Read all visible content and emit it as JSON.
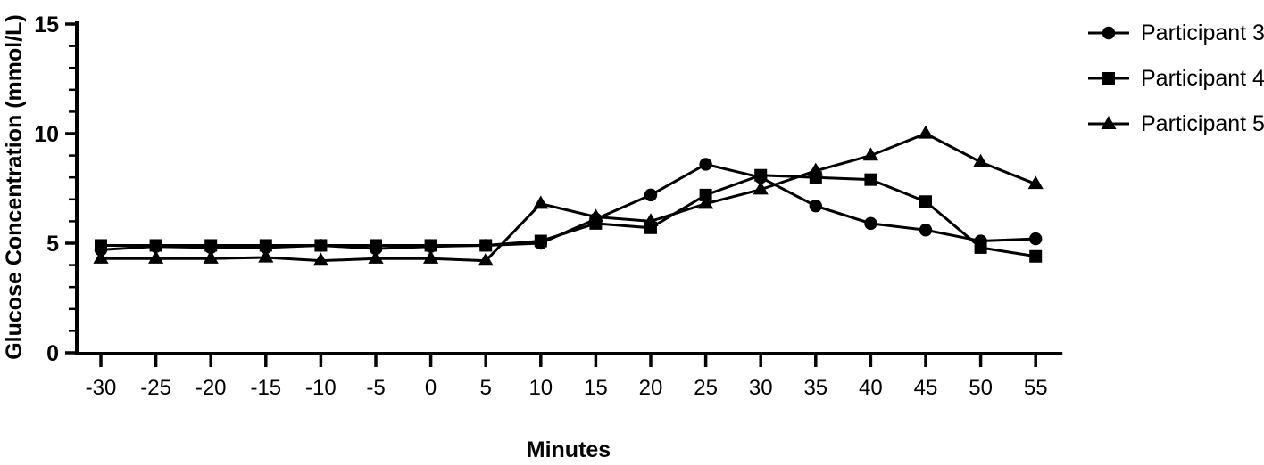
{
  "figure": {
    "background_color": "#ffffff",
    "ink_color": "#000000"
  },
  "chart_data": {
    "type": "line",
    "title": "",
    "xlabel": "Minutes",
    "ylabel": "Glucose Concentration (mmol/L)",
    "xlim": [
      -30,
      55
    ],
    "ylim": [
      0,
      15
    ],
    "x": [
      -30,
      -25,
      -20,
      -15,
      -10,
      -5,
      0,
      5,
      10,
      15,
      20,
      25,
      30,
      35,
      40,
      45,
      50,
      55
    ],
    "x_tick_labels": [
      "-30",
      "-25",
      "-20",
      "-15",
      "-10",
      "-5",
      "0",
      "5",
      "10",
      "15",
      "20",
      "25",
      "30",
      "35",
      "40",
      "45",
      "50",
      "55"
    ],
    "y_major_ticks": [
      0,
      5,
      10,
      15
    ],
    "y_minor_tick_step": 1,
    "grid": false,
    "legend_position": "right-outside",
    "series": [
      {
        "name": "Participant 3",
        "marker": "circle",
        "color": "#000000",
        "values": [
          4.7,
          4.85,
          4.8,
          4.8,
          4.9,
          4.75,
          4.85,
          4.9,
          5.0,
          6.1,
          7.2,
          8.6,
          8.0,
          6.7,
          5.9,
          5.6,
          5.1,
          5.2
        ]
      },
      {
        "name": "Participant 4",
        "marker": "square",
        "color": "#000000",
        "values": [
          4.9,
          4.9,
          4.9,
          4.9,
          4.9,
          4.9,
          4.9,
          4.9,
          5.1,
          5.9,
          5.7,
          7.2,
          8.1,
          8.0,
          7.9,
          6.9,
          4.8,
          4.4
        ]
      },
      {
        "name": "Participant 5",
        "marker": "triangle",
        "color": "#000000",
        "values": [
          4.3,
          4.3,
          4.3,
          4.35,
          4.2,
          4.3,
          4.3,
          4.2,
          6.8,
          6.2,
          6.0,
          6.8,
          7.45,
          8.3,
          9.0,
          10.0,
          8.7,
          7.7
        ]
      }
    ]
  }
}
